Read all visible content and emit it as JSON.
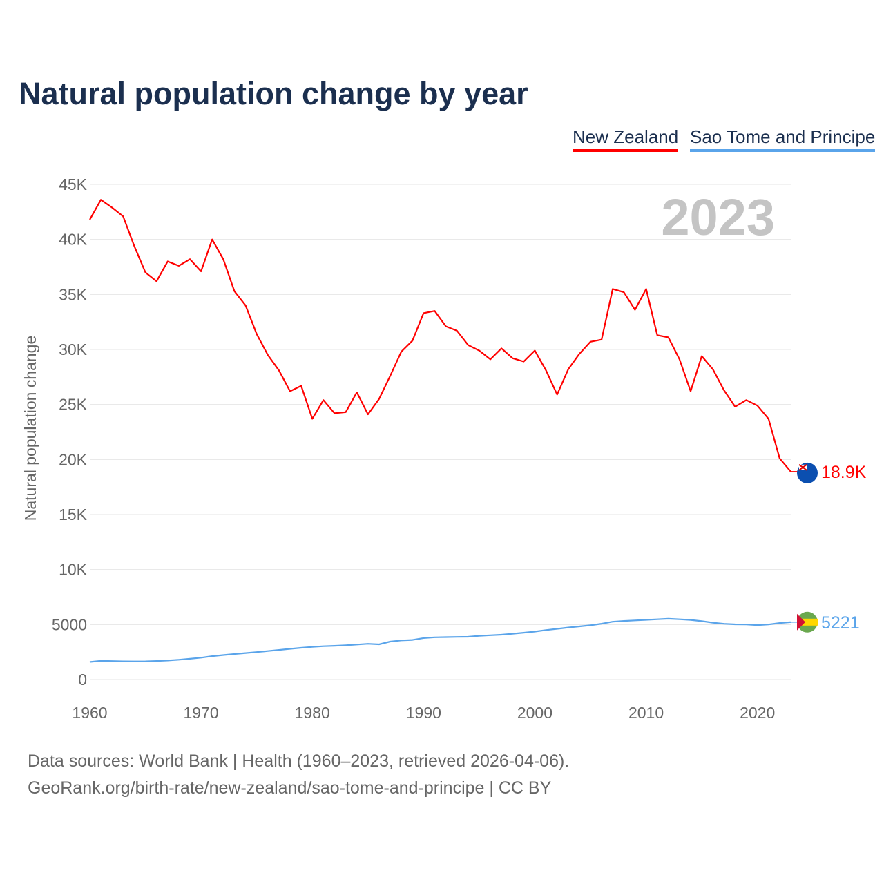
{
  "chart_data": {
    "type": "line",
    "title": "Natural population change by year",
    "xlabel": "",
    "ylabel": "Natural population change",
    "xlim": [
      1960,
      2023
    ],
    "ylim": [
      0,
      45000
    ],
    "grid": true,
    "legend_placement": "top-right",
    "year_watermark": "2023",
    "y_ticks": [
      {
        "v": 0,
        "label": "0"
      },
      {
        "v": 5000,
        "label": "5000"
      },
      {
        "v": 10000,
        "label": "10K"
      },
      {
        "v": 15000,
        "label": "15K"
      },
      {
        "v": 20000,
        "label": "20K"
      },
      {
        "v": 25000,
        "label": "25K"
      },
      {
        "v": 30000,
        "label": "30K"
      },
      {
        "v": 35000,
        "label": "35K"
      },
      {
        "v": 40000,
        "label": "40K"
      },
      {
        "v": 45000,
        "label": "45K"
      }
    ],
    "x_ticks": [
      {
        "v": 1960,
        "label": "1960"
      },
      {
        "v": 1970,
        "label": "1970"
      },
      {
        "v": 1980,
        "label": "1980"
      },
      {
        "v": 1990,
        "label": "1990"
      },
      {
        "v": 2000,
        "label": "2000"
      },
      {
        "v": 2010,
        "label": "2010"
      },
      {
        "v": 2020,
        "label": "2020"
      }
    ],
    "x_start": 1960,
    "series": [
      {
        "name": "New Zealand",
        "color": "#ff0000",
        "end_label": "18.9K",
        "flag": "new-zealand",
        "values": [
          41800,
          43600,
          42900,
          42100,
          39400,
          37000,
          36200,
          38000,
          37600,
          38200,
          37100,
          40000,
          38200,
          35300,
          34000,
          31400,
          29500,
          28100,
          26200,
          26700,
          23700,
          25400,
          24200,
          24300,
          26100,
          24100,
          25500,
          27600,
          29800,
          30800,
          33300,
          33500,
          32100,
          31700,
          30400,
          29900,
          29100,
          30100,
          29200,
          28900,
          29900,
          28100,
          25900,
          28200,
          29600,
          30700,
          30900,
          35500,
          35200,
          33600,
          35500,
          31300,
          31100,
          29100,
          26200,
          29400,
          28200,
          26300,
          24800,
          25400,
          24900,
          23700,
          20100,
          18900
        ]
      },
      {
        "name": "Sao Tome and Principe",
        "color": "#5aa4ea",
        "end_label": "5221",
        "flag": "sao-tome-and-principe",
        "values": [
          1600,
          1700,
          1680,
          1660,
          1650,
          1660,
          1690,
          1730,
          1800,
          1890,
          1990,
          2130,
          2230,
          2320,
          2410,
          2500,
          2590,
          2690,
          2790,
          2890,
          2970,
          3030,
          3070,
          3120,
          3180,
          3250,
          3200,
          3450,
          3560,
          3600,
          3770,
          3840,
          3860,
          3880,
          3890,
          3980,
          4030,
          4080,
          4170,
          4260,
          4360,
          4500,
          4610,
          4730,
          4830,
          4930,
          5080,
          5260,
          5330,
          5380,
          5430,
          5480,
          5530,
          5480,
          5420,
          5310,
          5170,
          5070,
          5020,
          5010,
          4950,
          5010,
          5140,
          5221
        ]
      }
    ]
  },
  "footer": {
    "line1": "Data sources: World Bank | Health (1960–2023, retrieved 2026-04-06).",
    "line2": "GeoRank.org/birth-rate/new-zealand/sao-tome-and-principe | CC BY"
  }
}
